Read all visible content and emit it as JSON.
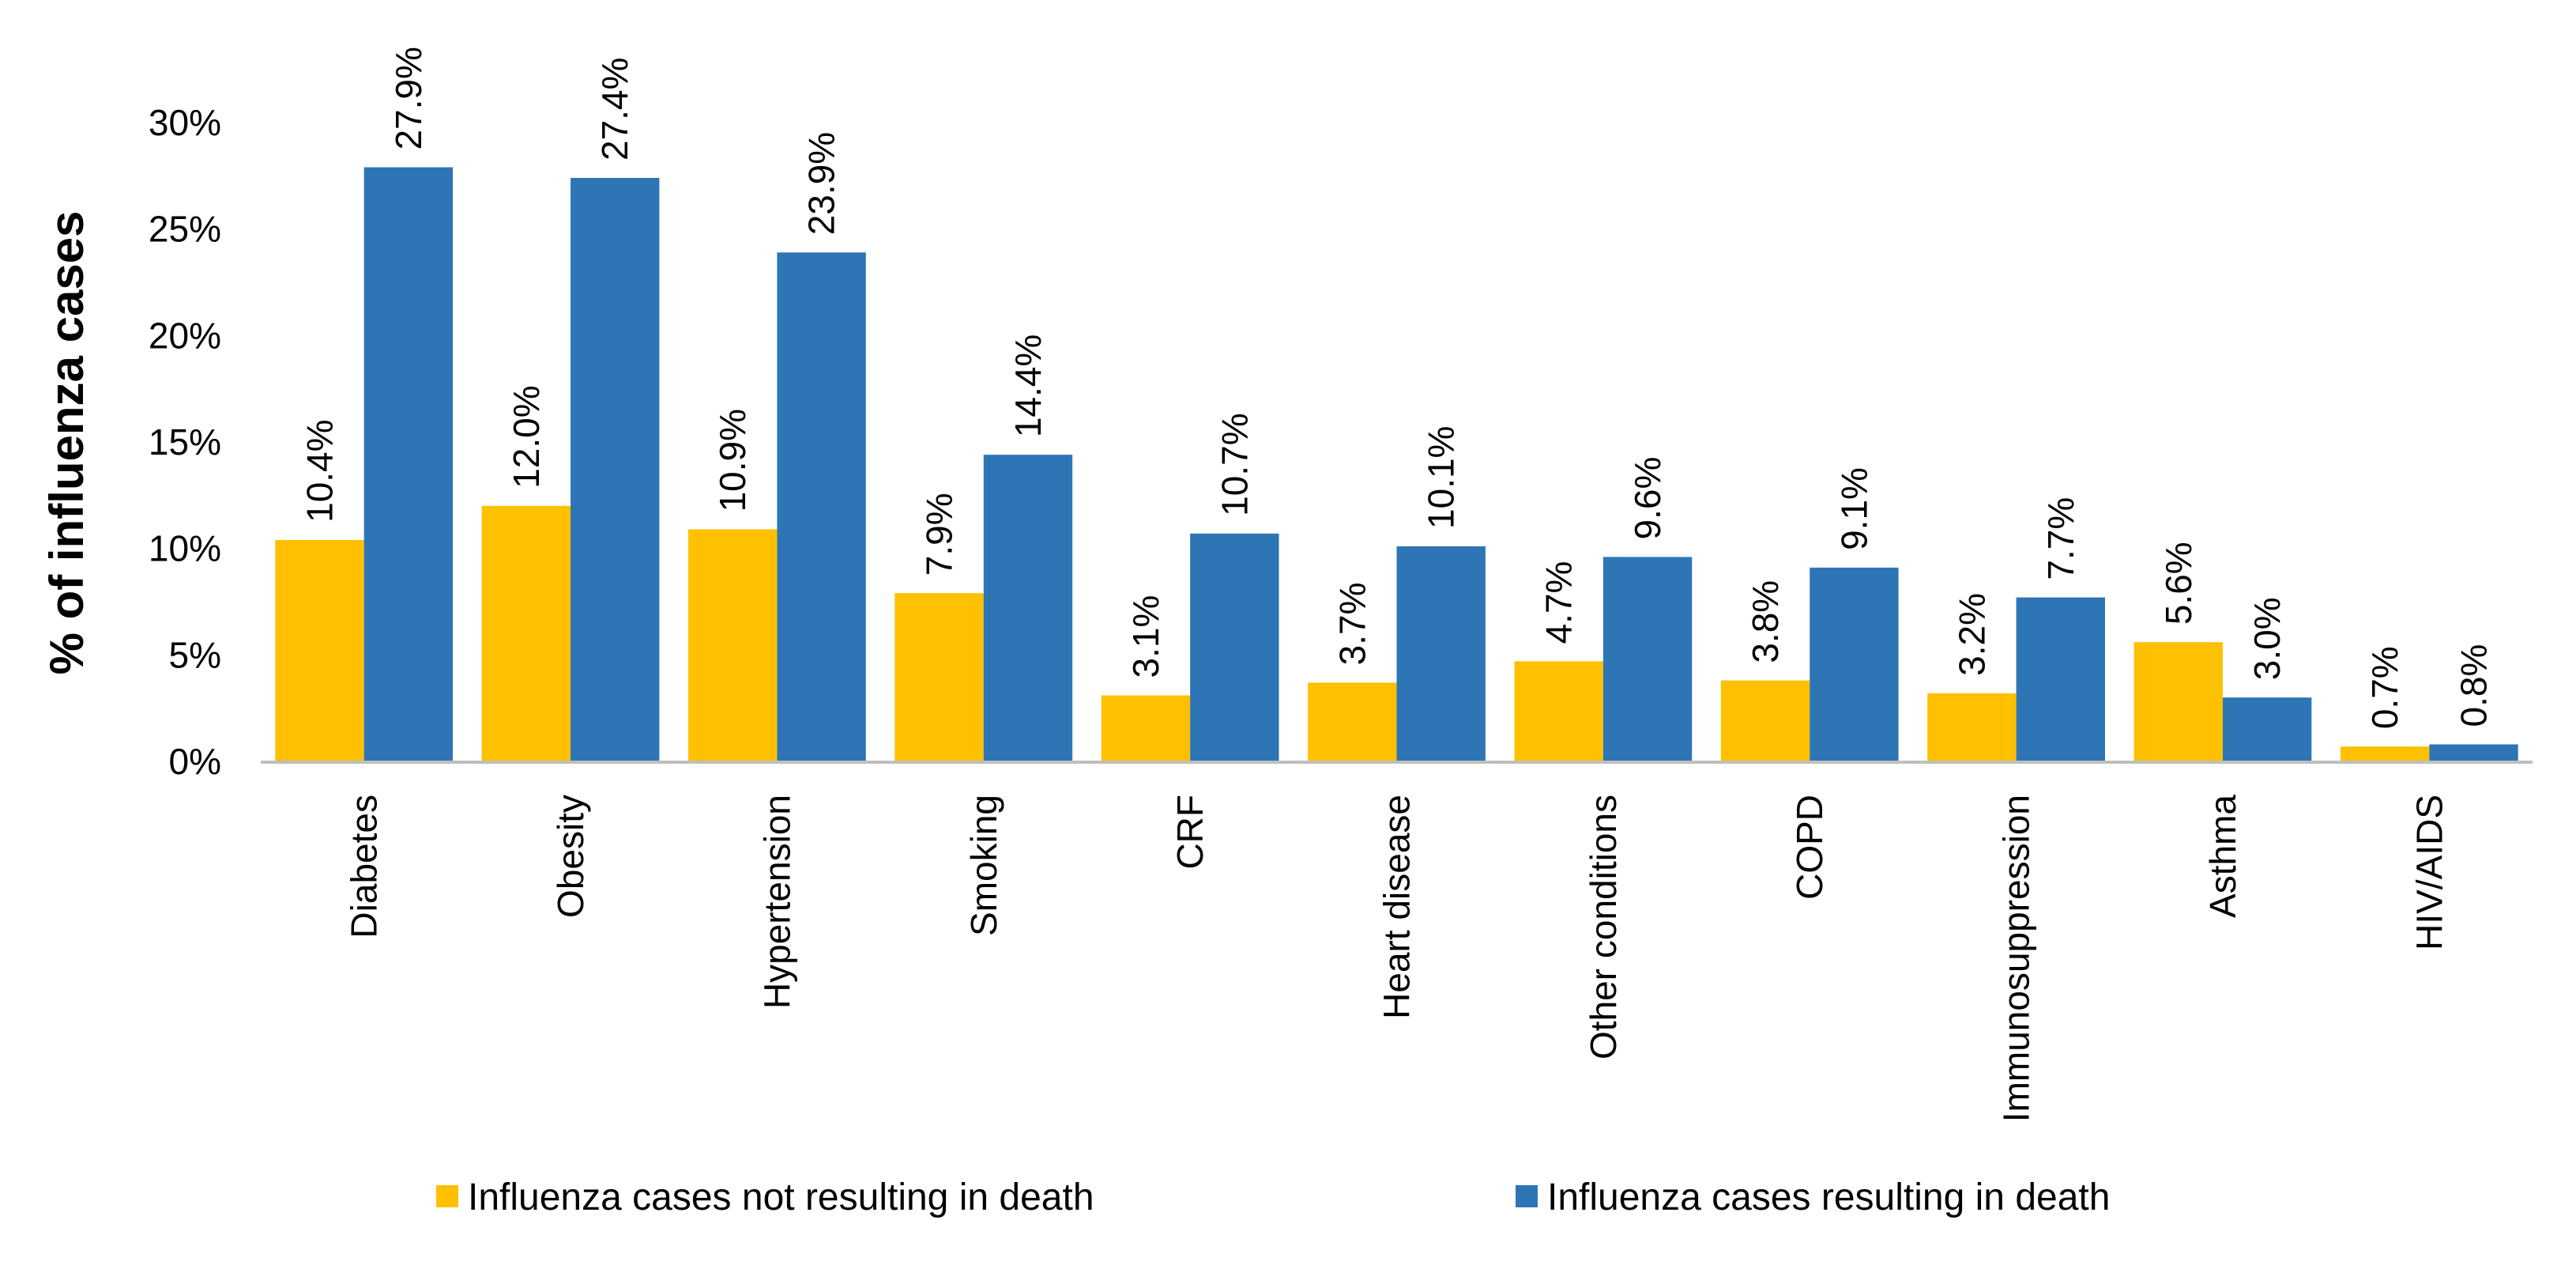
{
  "chart_data": {
    "type": "bar",
    "title": "",
    "xlabel": "",
    "ylabel": "% of influenza cases",
    "ylim": [
      0,
      30
    ],
    "yticks": [
      {
        "value": 0,
        "label": "0%"
      },
      {
        "value": 5,
        "label": "5%"
      },
      {
        "value": 10,
        "label": "10%"
      },
      {
        "value": 15,
        "label": "15%"
      },
      {
        "value": 20,
        "label": "20%"
      },
      {
        "value": 25,
        "label": "25%"
      },
      {
        "value": 30,
        "label": "30%"
      }
    ],
    "grid": false,
    "legend_position": "bottom",
    "categories": [
      "Diabetes",
      "Obesity",
      "Hypertension",
      "Smoking",
      "CRF",
      "Heart disease",
      "Other conditions",
      "COPD",
      "Immunosuppression",
      "Asthma",
      "HIV/AIDS"
    ],
    "series": [
      {
        "name": "Influenza cases not resulting in death",
        "color": "#FFC000",
        "values": [
          10.4,
          12.0,
          10.9,
          7.9,
          3.1,
          3.7,
          4.7,
          3.8,
          3.2,
          5.6,
          0.7
        ],
        "labels": [
          "10.4%",
          "12.0%",
          "10.9%",
          "7.9%",
          "3.1%",
          "3.7%",
          "4.7%",
          "3.8%",
          "3.2%",
          "5.6%",
          "0.7%"
        ]
      },
      {
        "name": "Influenza cases resulting in death",
        "color": "#2E75B6",
        "values": [
          27.9,
          27.4,
          23.9,
          14.4,
          10.7,
          10.1,
          9.6,
          9.1,
          7.7,
          3.0,
          0.8
        ],
        "labels": [
          "27.9%",
          "27.4%",
          "23.9%",
          "14.4%",
          "10.7%",
          "10.1%",
          "9.6%",
          "9.1%",
          "7.7%",
          "3.0%",
          "0.8%"
        ]
      }
    ]
  },
  "colors": {
    "axis": "#BFBFBF"
  }
}
